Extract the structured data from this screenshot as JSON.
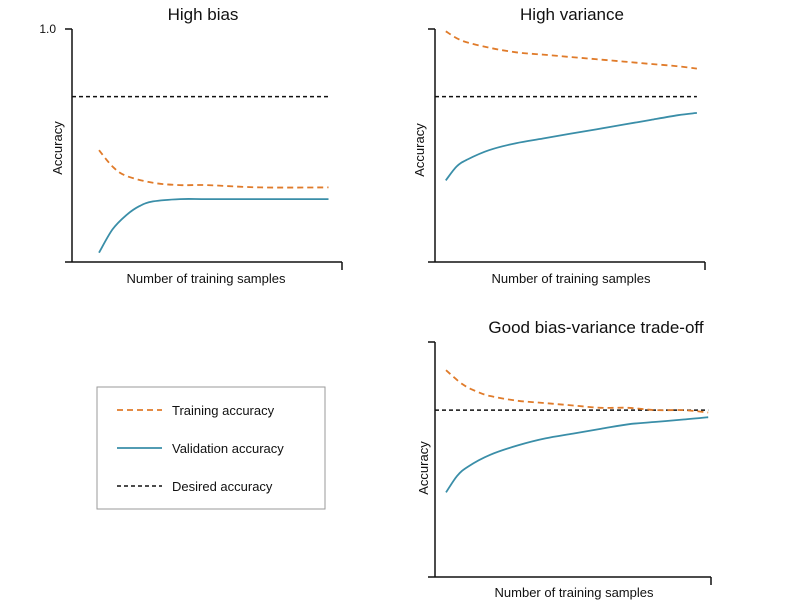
{
  "chart_data": [
    {
      "type": "line",
      "title": "High bias",
      "xlabel": "Number of training samples",
      "ylabel": "Accuracy",
      "ytick_label": "1.0",
      "xlim": [
        0,
        1
      ],
      "ylim": [
        0,
        1
      ],
      "grid": false,
      "series": [
        {
          "name": "Training accuracy",
          "x": [
            0.1,
            0.15,
            0.2,
            0.3,
            0.4,
            0.5,
            0.7,
            0.95
          ],
          "y": [
            0.48,
            0.41,
            0.37,
            0.34,
            0.33,
            0.33,
            0.32,
            0.32
          ]
        },
        {
          "name": "Validation accuracy",
          "x": [
            0.1,
            0.15,
            0.2,
            0.25,
            0.3,
            0.4,
            0.5,
            0.7,
            0.95
          ],
          "y": [
            0.04,
            0.14,
            0.2,
            0.24,
            0.26,
            0.27,
            0.27,
            0.27,
            0.27
          ]
        },
        {
          "name": "Desired accuracy",
          "x": [
            0.0,
            0.95
          ],
          "y": [
            0.71,
            0.71
          ]
        }
      ]
    },
    {
      "type": "line",
      "title": "High variance",
      "xlabel": "Number of training samples",
      "ylabel": "Accuracy",
      "ytick_label": "",
      "xlim": [
        0,
        1
      ],
      "ylim": [
        0,
        1
      ],
      "grid": false,
      "series": [
        {
          "name": "Training accuracy",
          "x": [
            0.04,
            0.1,
            0.2,
            0.3,
            0.4,
            0.5,
            0.6,
            0.7,
            0.8,
            0.9,
            0.97
          ],
          "y": [
            0.99,
            0.95,
            0.92,
            0.9,
            0.89,
            0.88,
            0.87,
            0.86,
            0.85,
            0.84,
            0.83
          ]
        },
        {
          "name": "Validation accuracy",
          "x": [
            0.04,
            0.08,
            0.12,
            0.2,
            0.3,
            0.4,
            0.5,
            0.6,
            0.7,
            0.8,
            0.9,
            0.97
          ],
          "y": [
            0.35,
            0.41,
            0.44,
            0.48,
            0.51,
            0.53,
            0.55,
            0.57,
            0.59,
            0.61,
            0.63,
            0.64
          ]
        },
        {
          "name": "Desired accuracy",
          "x": [
            0.0,
            0.97
          ],
          "y": [
            0.71,
            0.71
          ]
        }
      ]
    },
    {
      "type": "line",
      "title": "Good bias-variance trade-off",
      "xlabel": "Number of training samples",
      "ylabel": "Accuracy",
      "ytick_label": "",
      "xlim": [
        0,
        1
      ],
      "ylim": [
        0,
        1
      ],
      "grid": false,
      "series": [
        {
          "name": "Training accuracy",
          "x": [
            0.04,
            0.1,
            0.15,
            0.2,
            0.3,
            0.4,
            0.5,
            0.6,
            0.7,
            0.8,
            0.9,
            0.99
          ],
          "y": [
            0.88,
            0.82,
            0.79,
            0.77,
            0.75,
            0.74,
            0.73,
            0.72,
            0.72,
            0.71,
            0.71,
            0.7
          ]
        },
        {
          "name": "Validation accuracy",
          "x": [
            0.04,
            0.08,
            0.12,
            0.2,
            0.3,
            0.4,
            0.5,
            0.6,
            0.7,
            0.8,
            0.9,
            0.99
          ],
          "y": [
            0.36,
            0.43,
            0.47,
            0.52,
            0.56,
            0.59,
            0.61,
            0.63,
            0.65,
            0.66,
            0.67,
            0.68
          ]
        },
        {
          "name": "Desired accuracy",
          "x": [
            0.0,
            0.99
          ],
          "y": [
            0.71,
            0.71
          ]
        }
      ]
    }
  ],
  "legend": {
    "items": [
      {
        "label": "Training accuracy",
        "style": "dashed",
        "color": "#e07b2a"
      },
      {
        "label": "Validation accuracy",
        "style": "solid",
        "color": "#3a8ea8"
      },
      {
        "label": "Desired accuracy",
        "style": "dashed",
        "color": "#111111"
      }
    ]
  },
  "colors": {
    "training": "#e07b2a",
    "validation": "#3a8ea8",
    "desired": "#111111",
    "axis": "#111111",
    "legend_border": "#9a9a9a"
  }
}
